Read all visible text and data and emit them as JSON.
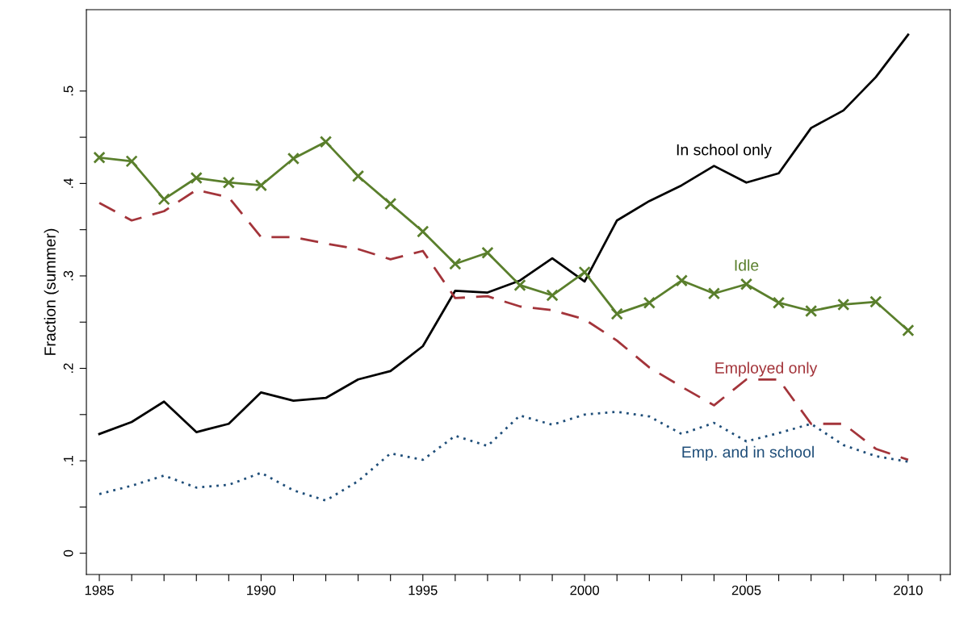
{
  "chart_data": {
    "type": "line",
    "ylabel": "Fraction (summer)",
    "x": [
      1985,
      1986,
      1987,
      1988,
      1989,
      1990,
      1991,
      1992,
      1993,
      1994,
      1995,
      1996,
      1997,
      1998,
      1999,
      2000,
      2001,
      2002,
      2003,
      2004,
      2005,
      2006,
      2007,
      2008,
      2009,
      2010
    ],
    "series": [
      {
        "name": "In school only",
        "color": "#000000",
        "line_style": "solid",
        "marker": "none",
        "values": [
          0.129,
          0.142,
          0.164,
          0.131,
          0.14,
          0.174,
          0.165,
          0.168,
          0.188,
          0.197,
          0.224,
          0.284,
          0.282,
          0.295,
          0.319,
          0.294,
          0.36,
          0.381,
          0.398,
          0.419,
          0.401,
          0.411,
          0.46,
          0.479,
          0.515,
          0.561
        ]
      },
      {
        "name": "Idle",
        "color": "#5a7f2c",
        "line_style": "solid",
        "marker": "cross",
        "values": [
          0.428,
          0.424,
          0.383,
          0.406,
          0.401,
          0.398,
          0.427,
          0.445,
          0.408,
          0.378,
          0.348,
          0.313,
          0.325,
          0.29,
          0.279,
          0.304,
          0.259,
          0.271,
          0.295,
          0.281,
          0.291,
          0.271,
          0.262,
          0.269,
          0.272,
          0.241
        ]
      },
      {
        "name": "Employed only",
        "color": "#a3343a",
        "line_style": "dashed",
        "marker": "none",
        "values": [
          0.379,
          0.36,
          0.37,
          0.393,
          0.385,
          0.342,
          0.342,
          0.335,
          0.329,
          0.318,
          0.327,
          0.276,
          0.278,
          0.267,
          0.263,
          0.253,
          0.23,
          0.201,
          0.18,
          0.16,
          0.188,
          0.188,
          0.14,
          0.14,
          0.113,
          0.101
        ]
      },
      {
        "name": "Emp. and in school",
        "color": "#1f4e79",
        "line_style": "dotted",
        "marker": "none",
        "values": [
          0.064,
          0.073,
          0.084,
          0.071,
          0.074,
          0.087,
          0.068,
          0.057,
          0.078,
          0.108,
          0.101,
          0.127,
          0.116,
          0.149,
          0.139,
          0.15,
          0.153,
          0.148,
          0.129,
          0.141,
          0.121,
          0.13,
          0.14,
          0.117,
          0.105,
          0.099
        ]
      }
    ],
    "xlim": [
      1984.6,
      2011.3
    ],
    "xticks": [
      1985,
      {
        "value": 1986,
        "label": null
      },
      {
        "value": 1987,
        "label": null
      },
      {
        "value": 1988,
        "label": null
      },
      {
        "value": 1989,
        "label": null
      },
      1990,
      {
        "value": 1991,
        "label": null
      },
      {
        "value": 1992,
        "label": null
      },
      {
        "value": 1993,
        "label": null
      },
      {
        "value": 1994,
        "label": null
      },
      1995,
      {
        "value": 1996,
        "label": null
      },
      {
        "value": 1997,
        "label": null
      },
      {
        "value": 1998,
        "label": null
      },
      {
        "value": 1999,
        "label": null
      },
      2000,
      {
        "value": 2001,
        "label": null
      },
      {
        "value": 2002,
        "label": null
      },
      {
        "value": 2003,
        "label": null
      },
      {
        "value": 2004,
        "label": null
      },
      2005,
      {
        "value": 2006,
        "label": null
      },
      {
        "value": 2007,
        "label": null
      },
      {
        "value": 2008,
        "label": null
      },
      {
        "value": 2009,
        "label": null
      },
      2010,
      {
        "value": 2011,
        "label": null
      }
    ],
    "ylim": [
      -0.023,
      0.588
    ],
    "yticks": [
      0,
      {
        "value": 0.05,
        "label": null
      },
      {
        "value": 0.1,
        "label": ".1"
      },
      {
        "value": 0.15,
        "label": null
      },
      {
        "value": 0.2,
        "label": ".2"
      },
      {
        "value": 0.25,
        "label": null
      },
      {
        "value": 0.3,
        "label": ".3"
      },
      {
        "value": 0.35,
        "label": null
      },
      {
        "value": 0.4,
        "label": ".4"
      },
      {
        "value": 0.45,
        "label": null
      },
      {
        "value": 0.5,
        "label": ".5"
      }
    ],
    "grid": false,
    "legend": false
  }
}
